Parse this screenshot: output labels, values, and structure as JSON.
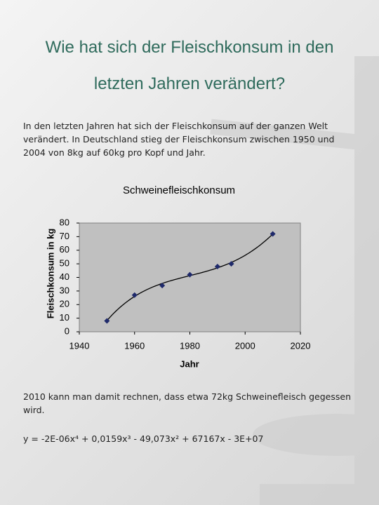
{
  "header": {
    "title": "Wie hat sich der Fleischkonsum in den letzten Jahren verändert?"
  },
  "intro": "In den letzten Jahren hat sich der Fleischkonsum auf der ganzen Welt verändert. In Deutschland stieg der Fleischkonsum zwischen 1950 und 2004 von 8kg auf 60kg pro Kopf und Jahr.",
  "chart_data": {
    "type": "scatter",
    "title": "Schweinefleischkonsum",
    "x_label": "Jahr",
    "y_label": "Fleischkonsum in kg",
    "x": [
      1950,
      1960,
      1970,
      1980,
      1990,
      1995,
      2010
    ],
    "values": [
      8,
      27,
      34,
      42,
      48,
      50,
      72
    ],
    "color": "#1f2a6b",
    "trendline": "polynomial",
    "trendline_order": 4,
    "xlim": [
      1940,
      2020
    ],
    "xticks": [
      1940,
      1960,
      1980,
      2000,
      2020
    ],
    "ylim": [
      0,
      80
    ],
    "yticks": [
      0,
      10,
      20,
      30,
      40,
      50,
      60,
      70,
      80
    ],
    "grid": false
  },
  "conclusion": "2010 kann man damit rechnen, dass etwa 72kg Schweinefleisch gegessen wird.",
  "formula": "y = -2E-06x⁴ + 0,0159x³ - 49,073x² + 67167x - 3E+07"
}
